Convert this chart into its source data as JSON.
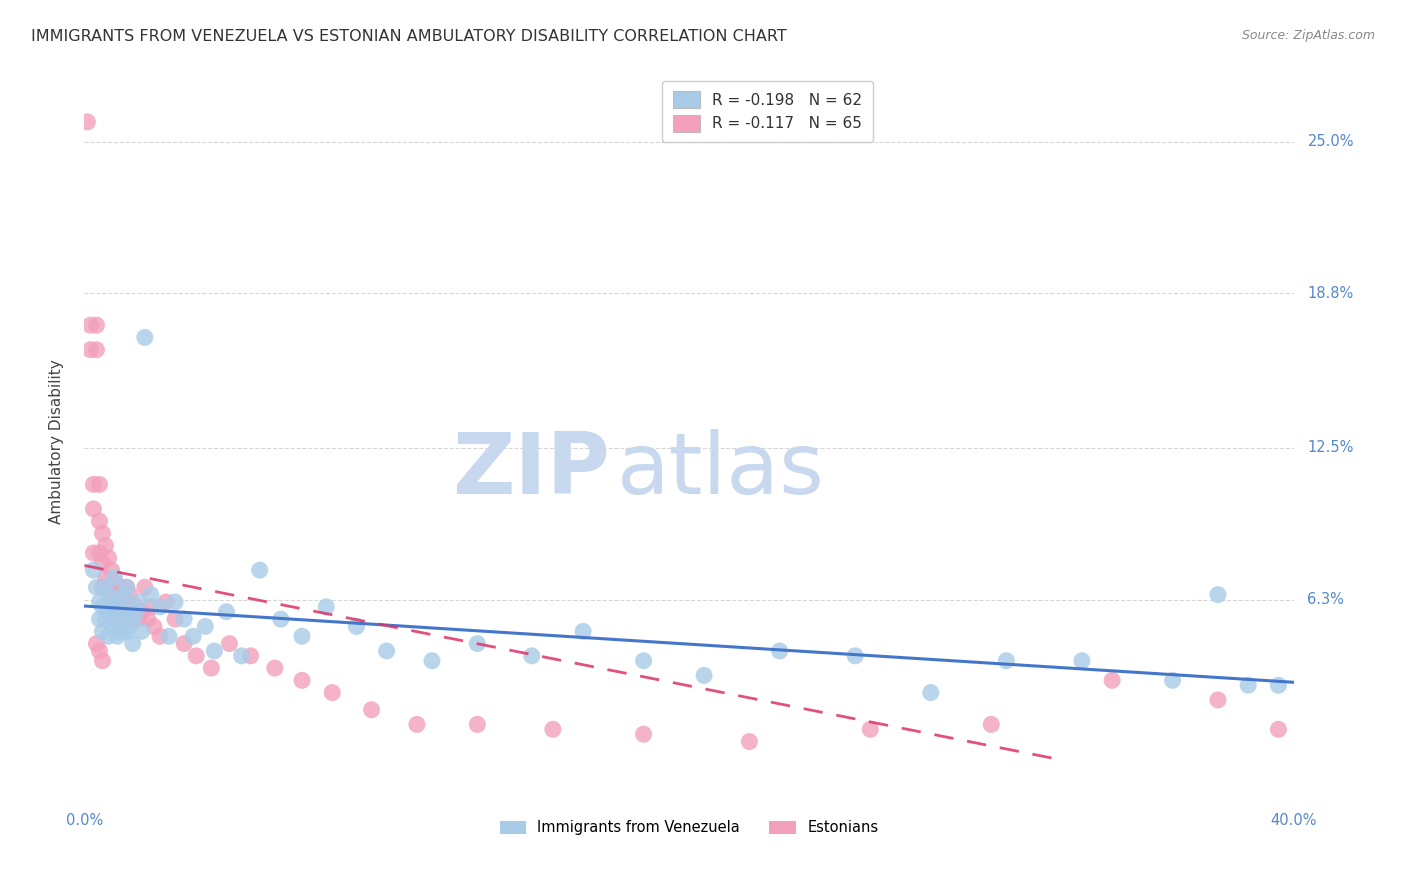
{
  "title": "IMMIGRANTS FROM VENEZUELA VS ESTONIAN AMBULATORY DISABILITY CORRELATION CHART",
  "source": "Source: ZipAtlas.com",
  "ylabel": "Ambulatory Disability",
  "ytick_labels": [
    "25.0%",
    "18.8%",
    "12.5%",
    "6.3%"
  ],
  "ytick_values": [
    0.25,
    0.188,
    0.125,
    0.063
  ],
  "xmin": 0.0,
  "xmax": 0.4,
  "ymin": -0.02,
  "ymax": 0.275,
  "blue_R": -0.198,
  "blue_N": 62,
  "pink_R": -0.117,
  "pink_N": 65,
  "blue_color": "#A8CBE8",
  "pink_color": "#F2A0BC",
  "blue_line_color": "#4477CC",
  "pink_line_color": "#DD3366",
  "axis_label_color": "#5588CC",
  "watermark_zip_color": "#C8D8EE",
  "watermark_atlas_color": "#C8D8EE",
  "grid_color": "#CCCCCC",
  "title_color": "#333333",
  "source_color": "#888888",
  "blue_scatter_x": [
    0.003,
    0.004,
    0.005,
    0.005,
    0.006,
    0.006,
    0.007,
    0.007,
    0.008,
    0.008,
    0.008,
    0.009,
    0.009,
    0.01,
    0.01,
    0.011,
    0.011,
    0.012,
    0.012,
    0.013,
    0.013,
    0.014,
    0.014,
    0.015,
    0.015,
    0.016,
    0.016,
    0.017,
    0.018,
    0.019,
    0.02,
    0.022,
    0.025,
    0.028,
    0.03,
    0.033,
    0.036,
    0.04,
    0.043,
    0.047,
    0.052,
    0.058,
    0.065,
    0.072,
    0.08,
    0.09,
    0.1,
    0.115,
    0.13,
    0.148,
    0.165,
    0.185,
    0.205,
    0.23,
    0.255,
    0.28,
    0.305,
    0.33,
    0.36,
    0.375,
    0.385,
    0.395
  ],
  "blue_scatter_y": [
    0.075,
    0.068,
    0.062,
    0.055,
    0.06,
    0.05,
    0.068,
    0.055,
    0.058,
    0.065,
    0.048,
    0.06,
    0.052,
    0.072,
    0.055,
    0.062,
    0.048,
    0.058,
    0.05,
    0.065,
    0.055,
    0.068,
    0.05,
    0.06,
    0.052,
    0.055,
    0.045,
    0.058,
    0.062,
    0.05,
    0.17,
    0.065,
    0.06,
    0.048,
    0.062,
    0.055,
    0.048,
    0.052,
    0.042,
    0.058,
    0.04,
    0.075,
    0.055,
    0.048,
    0.06,
    0.052,
    0.042,
    0.038,
    0.045,
    0.04,
    0.05,
    0.038,
    0.032,
    0.042,
    0.04,
    0.025,
    0.038,
    0.038,
    0.03,
    0.065,
    0.028,
    0.028
  ],
  "pink_scatter_x": [
    0.001,
    0.002,
    0.002,
    0.003,
    0.003,
    0.003,
    0.004,
    0.004,
    0.005,
    0.005,
    0.005,
    0.006,
    0.006,
    0.006,
    0.007,
    0.007,
    0.008,
    0.008,
    0.009,
    0.009,
    0.01,
    0.01,
    0.01,
    0.011,
    0.011,
    0.012,
    0.012,
    0.013,
    0.013,
    0.014,
    0.014,
    0.015,
    0.016,
    0.017,
    0.018,
    0.019,
    0.02,
    0.021,
    0.022,
    0.023,
    0.025,
    0.027,
    0.03,
    0.033,
    0.037,
    0.042,
    0.048,
    0.055,
    0.063,
    0.072,
    0.082,
    0.095,
    0.11,
    0.13,
    0.155,
    0.185,
    0.22,
    0.26,
    0.3,
    0.34,
    0.375,
    0.395,
    0.004,
    0.005,
    0.006
  ],
  "pink_scatter_y": [
    0.258,
    0.175,
    0.165,
    0.11,
    0.1,
    0.082,
    0.175,
    0.165,
    0.11,
    0.095,
    0.082,
    0.09,
    0.078,
    0.068,
    0.085,
    0.072,
    0.08,
    0.068,
    0.075,
    0.062,
    0.07,
    0.06,
    0.055,
    0.065,
    0.058,
    0.068,
    0.058,
    0.062,
    0.055,
    0.068,
    0.06,
    0.065,
    0.058,
    0.06,
    0.055,
    0.058,
    0.068,
    0.055,
    0.06,
    0.052,
    0.048,
    0.062,
    0.055,
    0.045,
    0.04,
    0.035,
    0.045,
    0.04,
    0.035,
    0.03,
    0.025,
    0.018,
    0.012,
    0.012,
    0.01,
    0.008,
    0.005,
    0.01,
    0.012,
    0.03,
    0.022,
    0.01,
    0.045,
    0.042,
    0.038
  ]
}
